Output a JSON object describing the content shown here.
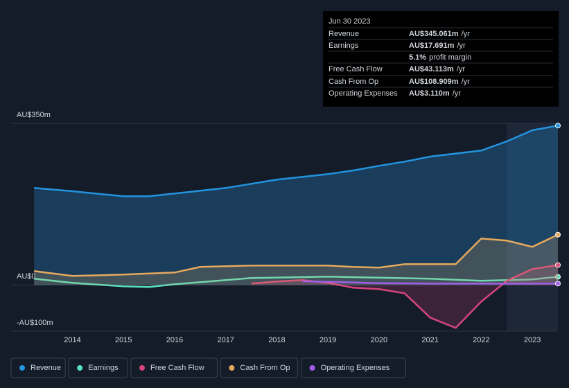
{
  "chart_data": {
    "type": "line",
    "ylim": [
      -100,
      350
    ],
    "yticks": [
      {
        "value": 350,
        "label": "AU$350m"
      },
      {
        "value": 0,
        "label": "AU$0"
      },
      {
        "value": -100,
        "label": "-AU$100m"
      }
    ],
    "xlim": [
      2012.8,
      2023.5
    ],
    "xticks": [
      2014,
      2015,
      2016,
      2017,
      2018,
      2019,
      2020,
      2021,
      2022,
      2023
    ],
    "highlight_xlim": [
      2022.5,
      2023.5
    ],
    "series": [
      {
        "name": "Revenue",
        "color": "#2394df",
        "area": true,
        "x": [
          2013.25,
          2014,
          2015,
          2015.5,
          2016,
          2017,
          2018,
          2019,
          2019.5,
          2020,
          2020.5,
          2021,
          2022,
          2022.5,
          2023,
          2023.5
        ],
        "values": [
          210,
          203,
          192,
          192,
          198,
          210,
          228,
          240,
          248,
          258,
          267,
          278,
          291,
          311,
          335,
          345.061
        ]
      },
      {
        "name": "Earnings",
        "color": "#58e0c0",
        "x": [
          2013.25,
          2014,
          2015,
          2015.5,
          2016,
          2017,
          2017.5,
          2019,
          2021,
          2022,
          2023,
          2023.5
        ],
        "values": [
          13.5,
          4.5,
          -3,
          -4.5,
          1.5,
          10.5,
          15,
          18,
          13.5,
          9,
          12,
          17.691
        ]
      },
      {
        "name": "Free Cash Flow",
        "color": "#d6457d",
        "area": true,
        "x": [
          2017.5,
          2018,
          2018.5,
          2019,
          2019.5,
          2020,
          2020.5,
          2021,
          2021.5,
          2022,
          2022.5,
          2023,
          2023.5
        ],
        "values": [
          3,
          7.5,
          10.5,
          4.5,
          -6,
          -9,
          -18,
          -70.6,
          -93,
          -36,
          9,
          34.5,
          43.113
        ]
      },
      {
        "name": "Cash From Op",
        "color": "#e6a95d",
        "area": true,
        "x": [
          2013.25,
          2014,
          2015,
          2016,
          2016.5,
          2017.5,
          2019,
          2019.5,
          2020,
          2020.5,
          2021.5,
          2022,
          2022.5,
          2023,
          2023.5
        ],
        "values": [
          30,
          19.5,
          22.5,
          27,
          39,
          42,
          42,
          39,
          37.5,
          45,
          45,
          100.6,
          96,
          82.6,
          108.909
        ]
      },
      {
        "name": "Operating Expenses",
        "color": "#a25ee8",
        "x": [
          2018.5,
          2019,
          2020,
          2021,
          2022,
          2023,
          2023.5
        ],
        "values": [
          8,
          7,
          4,
          3,
          3,
          3,
          3.11
        ]
      }
    ],
    "tooltip": {
      "date": "Jun 30 2023",
      "rows": [
        {
          "label": "Revenue",
          "value": "AU$345.061m",
          "unit": "/yr",
          "color": "#2394df"
        },
        {
          "label": "Earnings",
          "value": "AU$17.691m",
          "unit": "/yr",
          "color": "#58e0c0"
        },
        {
          "value": "5.1%",
          "unit": "profit margin",
          "color": "#ffffff"
        },
        {
          "label": "Free Cash Flow",
          "value": "AU$43.113m",
          "unit": "/yr",
          "color": "#d6457d"
        },
        {
          "label": "Cash From Op",
          "value": "AU$108.909m",
          "unit": "/yr",
          "color": "#e6a95d"
        },
        {
          "label": "Operating Expenses",
          "value": "AU$3.110m",
          "unit": "/yr",
          "color": "#a25ee8"
        }
      ]
    }
  }
}
